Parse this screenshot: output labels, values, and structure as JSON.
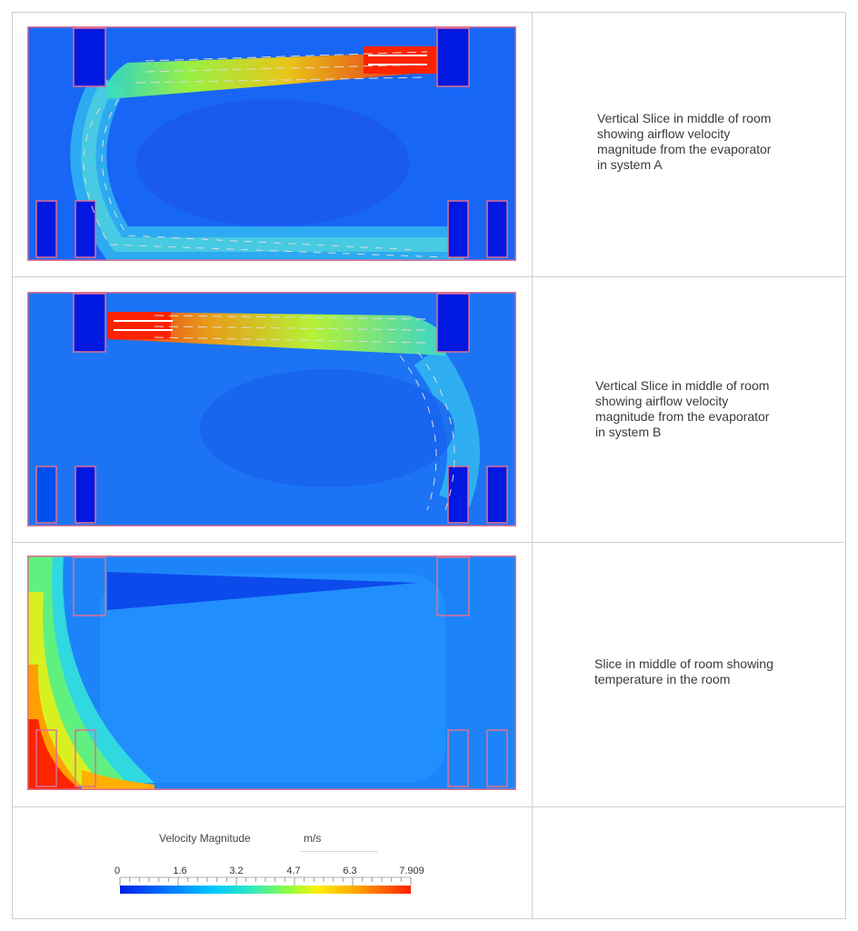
{
  "rows": [
    {
      "description_lines": [
        "Vertical Slice in middle of room",
        "showing airflow velocity",
        "magnitude from the evaporator",
        "in system A"
      ]
    },
    {
      "description_lines": [
        "Vertical Slice in middle of room",
        "showing airflow velocity",
        "magnitude from the evaporator",
        "in system B"
      ]
    },
    {
      "description_lines": [
        "Slice in middle of room showing",
        "temperature in the room"
      ]
    }
  ],
  "legend": {
    "title": "Velocity Magnitude",
    "unit": "m/s",
    "ticks": [
      "0",
      "1.6",
      "3.2",
      "4.7",
      "6.3",
      "7.909"
    ],
    "tick_values": [
      0,
      1.6,
      3.2,
      4.7,
      6.3,
      7.909
    ]
  }
}
